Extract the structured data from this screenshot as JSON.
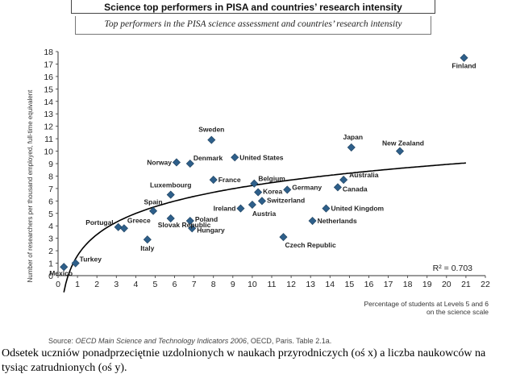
{
  "header": {
    "title": "Science top performers in PISA and countries’ research intensity",
    "subtitle": "Top performers in the PISA science assessment and countries’ research intensity"
  },
  "chart_data": {
    "type": "scatter",
    "title": "Science top performers in PISA and countries’ research intensity",
    "subtitle": "Top performers in the PISA science assessment and countries’ research intensity",
    "xlabel": "Percentage of students at Levels 5 and 6 on the science scale",
    "xlabel_lines": [
      "Percentage of students at Levels 5 and 6",
      "on the science scale"
    ],
    "ylabel": "Number of researchers per thousand employed, full-time equivalent",
    "xlim": [
      0,
      22
    ],
    "ylim": [
      0,
      18
    ],
    "xticks": [
      0,
      1,
      2,
      3,
      4,
      5,
      6,
      7,
      8,
      9,
      10,
      11,
      12,
      13,
      14,
      15,
      16,
      17,
      18,
      19,
      20,
      21,
      22
    ],
    "yticks": [
      0,
      1,
      2,
      3,
      4,
      5,
      6,
      7,
      8,
      9,
      10,
      11,
      12,
      13,
      14,
      15,
      16,
      17,
      18
    ],
    "grid": false,
    "marker_color": "#2e5f8a",
    "trendline_color": "#000000",
    "annotation": "R² = 0.703",
    "points": [
      {
        "country": "Finland",
        "x": 20.9,
        "y": 17.5
      },
      {
        "country": "Sweden",
        "x": 7.9,
        "y": 10.9
      },
      {
        "country": "Japan",
        "x": 15.1,
        "y": 10.3
      },
      {
        "country": "New Zealand",
        "x": 17.6,
        "y": 10.0
      },
      {
        "country": "United States",
        "x": 9.1,
        "y": 9.5
      },
      {
        "country": "Norway",
        "x": 6.1,
        "y": 9.1
      },
      {
        "country": "Denmark",
        "x": 6.8,
        "y": 9.0
      },
      {
        "country": "Australia",
        "x": 14.7,
        "y": 7.7
      },
      {
        "country": "France",
        "x": 8.0,
        "y": 7.7
      },
      {
        "country": "Belgium",
        "x": 10.1,
        "y": 7.4
      },
      {
        "country": "Canada",
        "x": 14.4,
        "y": 7.1
      },
      {
        "country": "Germany",
        "x": 11.8,
        "y": 6.9
      },
      {
        "country": "Korea",
        "x": 10.3,
        "y": 6.7
      },
      {
        "country": "Luxembourg",
        "x": 5.8,
        "y": 6.5
      },
      {
        "country": "Switzerland",
        "x": 10.5,
        "y": 6.0
      },
      {
        "country": "Ireland",
        "x": 9.4,
        "y": 5.4
      },
      {
        "country": "Austria",
        "x": 10.0,
        "y": 5.7
      },
      {
        "country": "United Kingdom",
        "x": 13.8,
        "y": 5.4
      },
      {
        "country": "Spain",
        "x": 4.9,
        "y": 5.2
      },
      {
        "country": "Netherlands",
        "x": 13.1,
        "y": 4.4
      },
      {
        "country": "Slovak Republic",
        "x": 5.8,
        "y": 4.6
      },
      {
        "country": "Poland",
        "x": 6.8,
        "y": 4.4
      },
      {
        "country": "Hungary",
        "x": 6.9,
        "y": 3.8
      },
      {
        "country": "Portugal",
        "x": 3.1,
        "y": 3.9
      },
      {
        "country": "Greece",
        "x": 3.4,
        "y": 3.8
      },
      {
        "country": "Czech Republic",
        "x": 11.6,
        "y": 3.1
      },
      {
        "country": "Italy",
        "x": 4.6,
        "y": 2.9
      },
      {
        "country": "Turkey",
        "x": 0.9,
        "y": 1.0
      },
      {
        "country": "Mexico",
        "x": 0.3,
        "y": 0.7
      }
    ],
    "trendline": {
      "type": "logarithmic",
      "r_squared": 0.703
    }
  },
  "footer": {
    "source_prefix": "Source: ",
    "source_title": "OECD Main Science and Technology Indicators 2006",
    "source_suffix": ", OECD, Paris. Table 2.1a.",
    "caption": "Odsetek uczniów ponadprzeciętnie uzdolnionych w naukach przyrodniczych (oś x) a liczba naukowców na tysiąc zatrudnionych (oś y)."
  }
}
